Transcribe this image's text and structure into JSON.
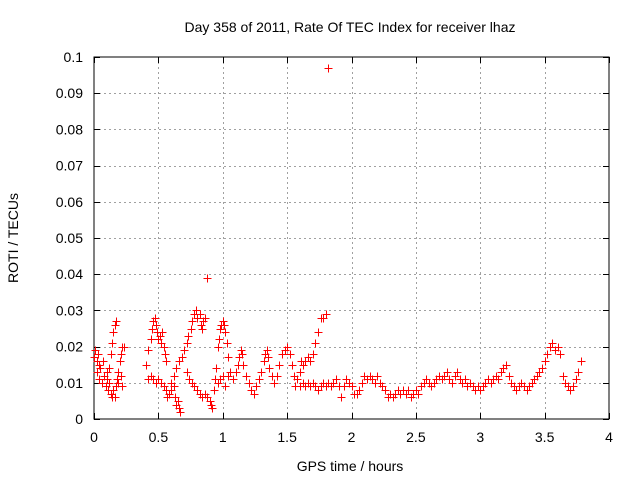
{
  "chart_data": {
    "type": "scatter",
    "title": "Day 358 of 2011, Rate Of TEC Index for receiver lhaz",
    "xlabel": "GPS time / hours",
    "ylabel": "ROTI / TECUs",
    "xlim": [
      0,
      4
    ],
    "ylim": [
      0,
      0.1
    ],
    "x_ticks": [
      0,
      0.5,
      1,
      1.5,
      2,
      2.5,
      3,
      3.5,
      4
    ],
    "x_tick_labels": [
      "0",
      "0.5",
      "1",
      "1.5",
      "2",
      "2.5",
      "3",
      "3.5",
      "4"
    ],
    "y_ticks": [
      0,
      0.01,
      0.02,
      0.03,
      0.04,
      0.05,
      0.06,
      0.07,
      0.08,
      0.09,
      0.1
    ],
    "y_tick_labels": [
      "0",
      "0.01",
      "0.02",
      "0.03",
      "0.04",
      "0.05",
      "0.06",
      "0.07",
      "0.08",
      "0.09",
      "0.1"
    ],
    "grid": true,
    "marker": "+",
    "color": "#ff0000",
    "series": [
      {
        "name": "ROTI",
        "points": [
          [
            0.0,
            0.017
          ],
          [
            0.01,
            0.019
          ],
          [
            0.02,
            0.016
          ],
          [
            0.02,
            0.013
          ],
          [
            0.03,
            0.018
          ],
          [
            0.04,
            0.015
          ],
          [
            0.04,
            0.011
          ],
          [
            0.05,
            0.014
          ],
          [
            0.06,
            0.01
          ],
          [
            0.07,
            0.016
          ],
          [
            0.08,
            0.012
          ],
          [
            0.09,
            0.009
          ],
          [
            0.1,
            0.013
          ],
          [
            0.1,
            0.011
          ],
          [
            0.11,
            0.008
          ],
          [
            0.12,
            0.01
          ],
          [
            0.12,
            0.014
          ],
          [
            0.13,
            0.018
          ],
          [
            0.14,
            0.021
          ],
          [
            0.15,
            0.024
          ],
          [
            0.16,
            0.026
          ],
          [
            0.17,
            0.027
          ],
          [
            0.13,
            0.007
          ],
          [
            0.14,
            0.006
          ],
          [
            0.15,
            0.008
          ],
          [
            0.16,
            0.006
          ],
          [
            0.17,
            0.009
          ],
          [
            0.18,
            0.011
          ],
          [
            0.19,
            0.013
          ],
          [
            0.2,
            0.016
          ],
          [
            0.21,
            0.018
          ],
          [
            0.22,
            0.02
          ],
          [
            0.23,
            0.02
          ],
          [
            0.19,
            0.01
          ],
          [
            0.21,
            0.012
          ],
          [
            0.22,
            0.009
          ],
          [
            0.4,
            0.015
          ],
          [
            0.42,
            0.019
          ],
          [
            0.44,
            0.022
          ],
          [
            0.45,
            0.025
          ],
          [
            0.46,
            0.027
          ],
          [
            0.47,
            0.028
          ],
          [
            0.48,
            0.026
          ],
          [
            0.49,
            0.024
          ],
          [
            0.5,
            0.022
          ],
          [
            0.51,
            0.023
          ],
          [
            0.52,
            0.021
          ],
          [
            0.53,
            0.024
          ],
          [
            0.54,
            0.02
          ],
          [
            0.55,
            0.018
          ],
          [
            0.56,
            0.016
          ],
          [
            0.42,
            0.011
          ],
          [
            0.44,
            0.012
          ],
          [
            0.46,
            0.011
          ],
          [
            0.48,
            0.01
          ],
          [
            0.5,
            0.011
          ],
          [
            0.52,
            0.01
          ],
          [
            0.54,
            0.009
          ],
          [
            0.56,
            0.008
          ],
          [
            0.57,
            0.006
          ],
          [
            0.58,
            0.007
          ],
          [
            0.6,
            0.008
          ],
          [
            0.62,
            0.009
          ],
          [
            0.63,
            0.006
          ],
          [
            0.64,
            0.004
          ],
          [
            0.65,
            0.005
          ],
          [
            0.66,
            0.003
          ],
          [
            0.67,
            0.002
          ],
          [
            0.6,
            0.01
          ],
          [
            0.62,
            0.012
          ],
          [
            0.64,
            0.014
          ],
          [
            0.66,
            0.016
          ],
          [
            0.68,
            0.017
          ],
          [
            0.7,
            0.019
          ],
          [
            0.72,
            0.021
          ],
          [
            0.73,
            0.023
          ],
          [
            0.75,
            0.025
          ],
          [
            0.76,
            0.027
          ],
          [
            0.78,
            0.029
          ],
          [
            0.79,
            0.03
          ],
          [
            0.8,
            0.028
          ],
          [
            0.82,
            0.029
          ],
          [
            0.83,
            0.026
          ],
          [
            0.84,
            0.025
          ],
          [
            0.85,
            0.027
          ],
          [
            0.86,
            0.028
          ],
          [
            0.88,
            0.039
          ],
          [
            0.72,
            0.013
          ],
          [
            0.74,
            0.011
          ],
          [
            0.76,
            0.01
          ],
          [
            0.78,
            0.009
          ],
          [
            0.8,
            0.008
          ],
          [
            0.82,
            0.007
          ],
          [
            0.84,
            0.006
          ],
          [
            0.86,
            0.007
          ],
          [
            0.88,
            0.006
          ],
          [
            0.9,
            0.005
          ],
          [
            0.91,
            0.004
          ],
          [
            0.92,
            0.003
          ],
          [
            0.93,
            0.008
          ],
          [
            0.94,
            0.011
          ],
          [
            0.95,
            0.014
          ],
          [
            0.96,
            0.02
          ],
          [
            0.97,
            0.022
          ],
          [
            0.98,
            0.025
          ],
          [
            0.99,
            0.026
          ],
          [
            1.0,
            0.027
          ],
          [
            1.01,
            0.026
          ],
          [
            1.02,
            0.024
          ],
          [
            1.03,
            0.021
          ],
          [
            1.04,
            0.017
          ],
          [
            0.96,
            0.01
          ],
          [
            0.98,
            0.011
          ],
          [
            1.0,
            0.012
          ],
          [
            1.02,
            0.009
          ],
          [
            1.04,
            0.012
          ],
          [
            1.06,
            0.013
          ],
          [
            1.08,
            0.011
          ],
          [
            1.1,
            0.013
          ],
          [
            1.12,
            0.015
          ],
          [
            1.13,
            0.017
          ],
          [
            1.14,
            0.019
          ],
          [
            1.15,
            0.018
          ],
          [
            1.16,
            0.015
          ],
          [
            1.18,
            0.012
          ],
          [
            1.2,
            0.01
          ],
          [
            1.22,
            0.008
          ],
          [
            1.24,
            0.007
          ],
          [
            1.26,
            0.009
          ],
          [
            1.28,
            0.011
          ],
          [
            1.3,
            0.013
          ],
          [
            1.32,
            0.016
          ],
          [
            1.33,
            0.018
          ],
          [
            1.34,
            0.019
          ],
          [
            1.35,
            0.017
          ],
          [
            1.36,
            0.014
          ],
          [
            1.38,
            0.012
          ],
          [
            1.4,
            0.01
          ],
          [
            1.42,
            0.012
          ],
          [
            1.44,
            0.015
          ],
          [
            1.46,
            0.018
          ],
          [
            1.48,
            0.019
          ],
          [
            1.5,
            0.02
          ],
          [
            1.52,
            0.018
          ],
          [
            1.54,
            0.015
          ],
          [
            1.55,
            0.012
          ],
          [
            1.56,
            0.009
          ],
          [
            1.58,
            0.011
          ],
          [
            1.6,
            0.013
          ],
          [
            1.61,
            0.016
          ],
          [
            1.62,
            0.015
          ],
          [
            1.64,
            0.016
          ],
          [
            1.66,
            0.017
          ],
          [
            1.68,
            0.016
          ],
          [
            1.7,
            0.018
          ],
          [
            1.72,
            0.021
          ],
          [
            1.74,
            0.024
          ],
          [
            1.76,
            0.028
          ],
          [
            1.78,
            0.028
          ],
          [
            1.8,
            0.029
          ],
          [
            1.82,
            0.097
          ],
          [
            1.6,
            0.009
          ],
          [
            1.62,
            0.01
          ],
          [
            1.64,
            0.009
          ],
          [
            1.66,
            0.01
          ],
          [
            1.68,
            0.009
          ],
          [
            1.7,
            0.01
          ],
          [
            1.72,
            0.009
          ],
          [
            1.74,
            0.008
          ],
          [
            1.76,
            0.009
          ],
          [
            1.78,
            0.01
          ],
          [
            1.8,
            0.009
          ],
          [
            1.82,
            0.01
          ],
          [
            1.84,
            0.009
          ],
          [
            1.86,
            0.01
          ],
          [
            1.88,
            0.011
          ],
          [
            1.9,
            0.009
          ],
          [
            1.92,
            0.006
          ],
          [
            1.94,
            0.009
          ],
          [
            1.96,
            0.011
          ],
          [
            1.98,
            0.01
          ],
          [
            2.0,
            0.009
          ],
          [
            2.02,
            0.007
          ],
          [
            2.04,
            0.007
          ],
          [
            2.06,
            0.008
          ],
          [
            2.08,
            0.01
          ],
          [
            2.1,
            0.012
          ],
          [
            2.12,
            0.011
          ],
          [
            2.14,
            0.012
          ],
          [
            2.16,
            0.011
          ],
          [
            2.18,
            0.01
          ],
          [
            2.2,
            0.012
          ],
          [
            2.22,
            0.01
          ],
          [
            2.24,
            0.009
          ],
          [
            2.26,
            0.008
          ],
          [
            2.28,
            0.006
          ],
          [
            2.3,
            0.007
          ],
          [
            2.32,
            0.006
          ],
          [
            2.34,
            0.007
          ],
          [
            2.36,
            0.008
          ],
          [
            2.38,
            0.007
          ],
          [
            2.4,
            0.008
          ],
          [
            2.42,
            0.007
          ],
          [
            2.44,
            0.008
          ],
          [
            2.46,
            0.006
          ],
          [
            2.48,
            0.007
          ],
          [
            2.5,
            0.008
          ],
          [
            2.52,
            0.007
          ],
          [
            2.54,
            0.009
          ],
          [
            2.56,
            0.01
          ],
          [
            2.58,
            0.011
          ],
          [
            2.6,
            0.01
          ],
          [
            2.62,
            0.009
          ],
          [
            2.64,
            0.01
          ],
          [
            2.66,
            0.011
          ],
          [
            2.68,
            0.012
          ],
          [
            2.7,
            0.011
          ],
          [
            2.72,
            0.012
          ],
          [
            2.74,
            0.013
          ],
          [
            2.76,
            0.011
          ],
          [
            2.78,
            0.01
          ],
          [
            2.8,
            0.012
          ],
          [
            2.82,
            0.013
          ],
          [
            2.84,
            0.011
          ],
          [
            2.86,
            0.01
          ],
          [
            2.88,
            0.011
          ],
          [
            2.9,
            0.009
          ],
          [
            2.92,
            0.01
          ],
          [
            2.94,
            0.009
          ],
          [
            2.96,
            0.008
          ],
          [
            2.98,
            0.009
          ],
          [
            3.0,
            0.008
          ],
          [
            3.02,
            0.009
          ],
          [
            3.04,
            0.01
          ],
          [
            3.06,
            0.011
          ],
          [
            3.08,
            0.01
          ],
          [
            3.1,
            0.011
          ],
          [
            3.12,
            0.012
          ],
          [
            3.14,
            0.011
          ],
          [
            3.16,
            0.013
          ],
          [
            3.18,
            0.014
          ],
          [
            3.2,
            0.015
          ],
          [
            3.22,
            0.012
          ],
          [
            3.24,
            0.01
          ],
          [
            3.26,
            0.009
          ],
          [
            3.28,
            0.008
          ],
          [
            3.3,
            0.009
          ],
          [
            3.32,
            0.01
          ],
          [
            3.34,
            0.009
          ],
          [
            3.36,
            0.008
          ],
          [
            3.38,
            0.009
          ],
          [
            3.4,
            0.01
          ],
          [
            3.42,
            0.011
          ],
          [
            3.44,
            0.012
          ],
          [
            3.46,
            0.013
          ],
          [
            3.48,
            0.014
          ],
          [
            3.5,
            0.016
          ],
          [
            3.52,
            0.018
          ],
          [
            3.54,
            0.02
          ],
          [
            3.56,
            0.021
          ],
          [
            3.58,
            0.019
          ],
          [
            3.6,
            0.02
          ],
          [
            3.62,
            0.018
          ],
          [
            3.64,
            0.012
          ],
          [
            3.66,
            0.01
          ],
          [
            3.68,
            0.009
          ],
          [
            3.7,
            0.008
          ],
          [
            3.72,
            0.009
          ],
          [
            3.74,
            0.011
          ],
          [
            3.76,
            0.013
          ],
          [
            3.78,
            0.016
          ]
        ]
      }
    ]
  }
}
